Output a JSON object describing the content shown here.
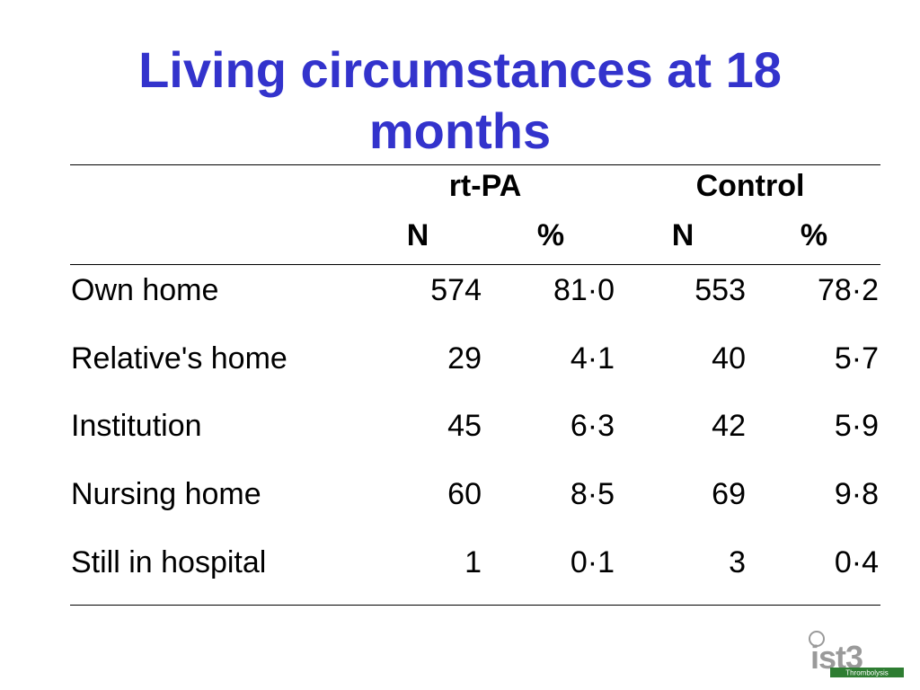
{
  "slide": {
    "title": "Living circumstances at 18 months"
  },
  "table": {
    "groups": [
      "rt-PA",
      "Control"
    ],
    "subheaders": [
      "N",
      "%",
      "N",
      "%"
    ],
    "rows": [
      {
        "label": "Own home",
        "rtpa_n": "574",
        "rtpa_pct": "81·0",
        "ctrl_n": "553",
        "ctrl_pct": "78·2"
      },
      {
        "label": "Relative's home",
        "rtpa_n": "29",
        "rtpa_pct": "4·1",
        "ctrl_n": "40",
        "ctrl_pct": "5·7"
      },
      {
        "label": "Institution",
        "rtpa_n": "45",
        "rtpa_pct": "6·3",
        "ctrl_n": "42",
        "ctrl_pct": "5·9"
      },
      {
        "label": "Nursing home",
        "rtpa_n": "60",
        "rtpa_pct": "8·5",
        "ctrl_n": "69",
        "ctrl_pct": "9·8"
      },
      {
        "label": "Still in hospital",
        "rtpa_n": "1",
        "rtpa_pct": "0·1",
        "ctrl_n": "3",
        "ctrl_pct": "0·4"
      }
    ]
  },
  "logo": {
    "text": "ist3",
    "tagline": "Thrombolysis",
    "colors": {
      "gray": "#9A9A9A",
      "green": "#2E7D32",
      "light": "#DDDDDD"
    }
  }
}
